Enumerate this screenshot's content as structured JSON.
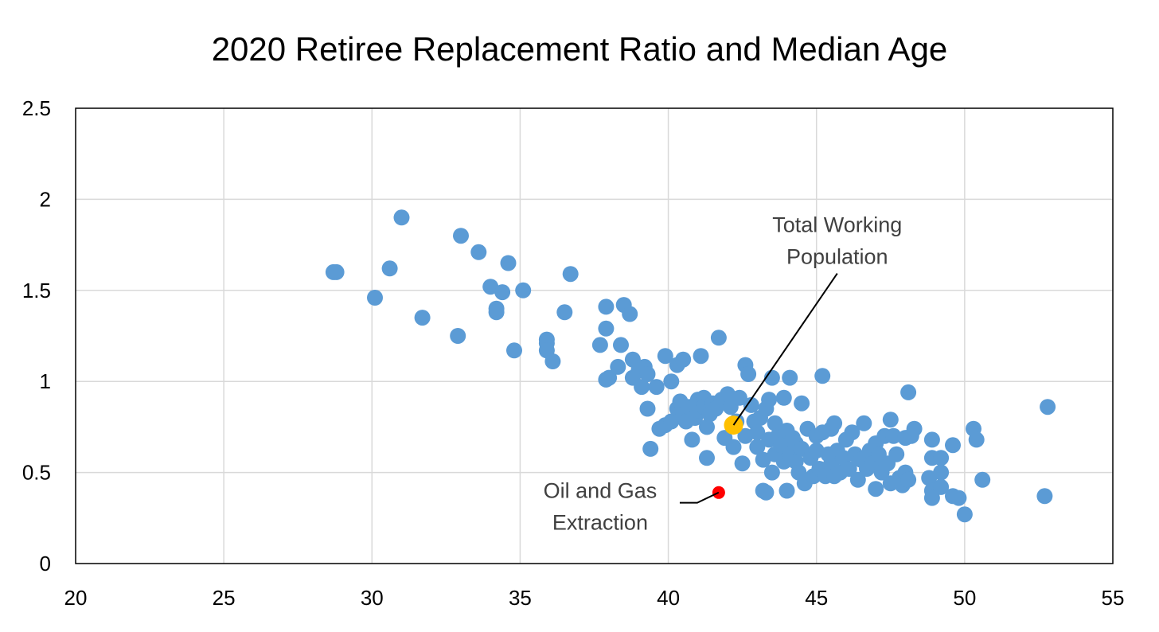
{
  "chart_data": {
    "type": "scatter",
    "title": "2020 Retiree Replacement Ratio and Median Age",
    "xlabel": "",
    "ylabel": "",
    "xlim": [
      20,
      55
    ],
    "ylim": [
      0,
      2.5
    ],
    "x_ticks": [
      20,
      25,
      30,
      35,
      40,
      45,
      50,
      55
    ],
    "y_ticks": [
      0,
      0.5,
      1,
      1.5,
      2,
      2.5
    ],
    "x_tick_labels": [
      "20",
      "25",
      "30",
      "35",
      "40",
      "45",
      "50",
      "55"
    ],
    "y_tick_labels": [
      "0",
      "0.5",
      "1",
      "1.5",
      "2",
      "2.5"
    ],
    "grid": true,
    "legend": "none",
    "colors": {
      "industries": "#5B9BD5",
      "total": "#FFC000",
      "oil_gas": "#FF0000",
      "grid": "#D9D9D9",
      "axis": "#000000"
    },
    "series": [
      {
        "key": "industries",
        "points": [
          [
            28.7,
            1.6
          ],
          [
            28.8,
            1.6
          ],
          [
            30.1,
            1.46
          ],
          [
            30.6,
            1.62
          ],
          [
            31.0,
            1.9
          ],
          [
            31.7,
            1.35
          ],
          [
            33.0,
            1.8
          ],
          [
            32.9,
            1.25
          ],
          [
            33.6,
            1.71
          ],
          [
            34.0,
            1.52
          ],
          [
            34.2,
            1.4
          ],
          [
            34.2,
            1.38
          ],
          [
            34.4,
            1.49
          ],
          [
            34.6,
            1.65
          ],
          [
            34.8,
            1.17
          ],
          [
            35.1,
            1.5
          ],
          [
            35.9,
            1.23
          ],
          [
            35.9,
            1.21
          ],
          [
            35.9,
            1.17
          ],
          [
            36.1,
            1.11
          ],
          [
            36.5,
            1.38
          ],
          [
            36.7,
            1.59
          ],
          [
            37.7,
            1.2
          ],
          [
            37.9,
            1.41
          ],
          [
            37.9,
            1.29
          ],
          [
            37.9,
            1.01
          ],
          [
            38.0,
            1.02
          ],
          [
            38.3,
            1.08
          ],
          [
            38.4,
            1.2
          ],
          [
            38.5,
            1.42
          ],
          [
            38.7,
            1.37
          ],
          [
            38.8,
            1.12
          ],
          [
            38.8,
            1.02
          ],
          [
            39.0,
            1.06
          ],
          [
            39.1,
            0.97
          ],
          [
            39.2,
            1.08
          ],
          [
            39.3,
            1.04
          ],
          [
            39.3,
            0.85
          ],
          [
            39.4,
            0.63
          ],
          [
            39.6,
            0.97
          ],
          [
            39.7,
            0.74
          ],
          [
            39.9,
            1.14
          ],
          [
            39.9,
            0.76
          ],
          [
            40.1,
            1.0
          ],
          [
            40.1,
            0.78
          ],
          [
            40.3,
            1.09
          ],
          [
            40.3,
            0.85
          ],
          [
            40.4,
            0.89
          ],
          [
            40.5,
            1.12
          ],
          [
            40.5,
            0.82
          ],
          [
            40.6,
            0.78
          ],
          [
            40.7,
            0.86
          ],
          [
            40.8,
            0.68
          ],
          [
            40.9,
            0.8
          ],
          [
            41.0,
            0.9
          ],
          [
            41.0,
            0.84
          ],
          [
            41.1,
            1.14
          ],
          [
            41.2,
            0.91
          ],
          [
            41.2,
            0.86
          ],
          [
            41.3,
            0.75
          ],
          [
            41.3,
            0.58
          ],
          [
            41.4,
            0.82
          ],
          [
            41.5,
            0.88
          ],
          [
            41.6,
            0.85
          ],
          [
            41.7,
            1.24
          ],
          [
            41.8,
            0.9
          ],
          [
            41.9,
            0.69
          ],
          [
            42.0,
            0.93
          ],
          [
            42.1,
            0.86
          ],
          [
            42.2,
            0.64
          ],
          [
            42.3,
            0.78
          ],
          [
            42.4,
            0.91
          ],
          [
            42.5,
            0.55
          ],
          [
            42.6,
            1.09
          ],
          [
            42.6,
            0.7
          ],
          [
            42.7,
            1.04
          ],
          [
            42.8,
            0.87
          ],
          [
            42.9,
            0.78
          ],
          [
            43.0,
            0.72
          ],
          [
            43.0,
            0.64
          ],
          [
            43.1,
            0.8
          ],
          [
            43.2,
            0.57
          ],
          [
            43.2,
            0.4
          ],
          [
            43.3,
            0.85
          ],
          [
            43.3,
            0.39
          ],
          [
            43.4,
            0.9
          ],
          [
            43.4,
            0.68
          ],
          [
            43.5,
            1.02
          ],
          [
            43.5,
            0.5
          ],
          [
            43.6,
            0.77
          ],
          [
            43.6,
            0.6
          ],
          [
            43.7,
            0.7
          ],
          [
            43.8,
            0.65
          ],
          [
            43.9,
            0.91
          ],
          [
            43.9,
            0.56
          ],
          [
            44.0,
            0.73
          ],
          [
            44.0,
            0.4
          ],
          [
            44.1,
            1.02
          ],
          [
            44.1,
            0.6
          ],
          [
            44.2,
            0.69
          ],
          [
            44.3,
            0.66
          ],
          [
            44.3,
            0.56
          ],
          [
            44.4,
            0.5
          ],
          [
            44.5,
            0.88
          ],
          [
            44.5,
            0.63
          ],
          [
            44.6,
            0.44
          ],
          [
            44.7,
            0.74
          ],
          [
            44.8,
            0.58
          ],
          [
            44.9,
            0.48
          ],
          [
            45.0,
            0.7
          ],
          [
            45.0,
            0.62
          ],
          [
            45.1,
            0.52
          ],
          [
            45.2,
            1.03
          ],
          [
            45.2,
            0.72
          ],
          [
            45.3,
            0.48
          ],
          [
            45.4,
            0.6
          ],
          [
            45.5,
            0.74
          ],
          [
            45.5,
            0.55
          ],
          [
            45.6,
            0.77
          ],
          [
            45.6,
            0.48
          ],
          [
            45.7,
            0.62
          ],
          [
            45.8,
            0.5
          ],
          [
            45.9,
            0.58
          ],
          [
            46.0,
            0.68
          ],
          [
            46.1,
            0.52
          ],
          [
            46.2,
            0.72
          ],
          [
            46.3,
            0.6
          ],
          [
            46.4,
            0.46
          ],
          [
            46.5,
            0.57
          ],
          [
            46.6,
            0.77
          ],
          [
            46.7,
            0.52
          ],
          [
            46.8,
            0.62
          ],
          [
            46.9,
            0.55
          ],
          [
            47.0,
            0.66
          ],
          [
            47.0,
            0.41
          ],
          [
            47.1,
            0.6
          ],
          [
            47.2,
            0.5
          ],
          [
            47.3,
            0.7
          ],
          [
            47.4,
            0.55
          ],
          [
            47.5,
            0.79
          ],
          [
            47.5,
            0.44
          ],
          [
            47.6,
            0.7
          ],
          [
            47.7,
            0.6
          ],
          [
            47.8,
            0.47
          ],
          [
            47.9,
            0.43
          ],
          [
            48.0,
            0.69
          ],
          [
            48.0,
            0.5
          ],
          [
            48.1,
            0.94
          ],
          [
            48.1,
            0.46
          ],
          [
            48.2,
            0.7
          ],
          [
            48.3,
            0.74
          ],
          [
            48.8,
            0.47
          ],
          [
            48.9,
            0.68
          ],
          [
            48.9,
            0.58
          ],
          [
            48.9,
            0.4
          ],
          [
            48.9,
            0.36
          ],
          [
            49.2,
            0.58
          ],
          [
            49.2,
            0.5
          ],
          [
            49.2,
            0.42
          ],
          [
            49.6,
            0.65
          ],
          [
            49.6,
            0.37
          ],
          [
            49.8,
            0.36
          ],
          [
            50.0,
            0.27
          ],
          [
            50.3,
            0.74
          ],
          [
            50.4,
            0.68
          ],
          [
            50.6,
            0.46
          ],
          [
            52.7,
            0.37
          ],
          [
            52.8,
            0.86
          ]
        ]
      },
      {
        "key": "total",
        "points": [
          [
            42.2,
            0.76
          ]
        ]
      },
      {
        "key": "oil_gas",
        "points": [
          [
            41.7,
            0.39
          ]
        ]
      }
    ],
    "annotations": [
      {
        "key": "total",
        "lines": [
          "Total Working",
          "Population"
        ],
        "target": [
          42.2,
          0.76
        ],
        "text_anchor_at": [
          45.7,
          1.82
        ]
      },
      {
        "key": "oil_gas",
        "lines": [
          "Oil and Gas",
          "Extraction"
        ],
        "target": [
          41.7,
          0.39
        ],
        "text_anchor_at": [
          37.7,
          0.36
        ]
      }
    ]
  }
}
